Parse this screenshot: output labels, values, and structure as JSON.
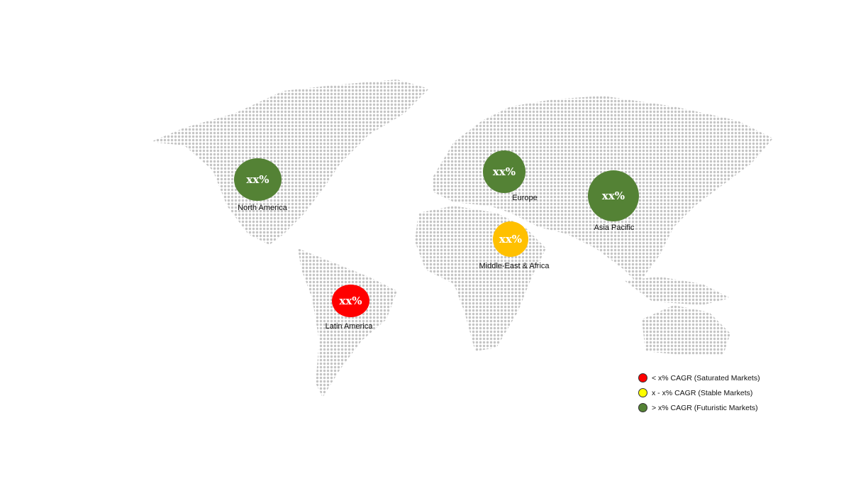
{
  "regions": [
    {
      "name": "North America",
      "value": "xx%",
      "color": "#548235",
      "category": "futuristic"
    },
    {
      "name": "Europe",
      "value": "xx%",
      "color": "#548235",
      "category": "futuristic"
    },
    {
      "name": "Asia Pacific",
      "value": "xx%",
      "color": "#548235",
      "category": "futuristic"
    },
    {
      "name": "Middle-East & Africa",
      "value": "xx%",
      "color": "#FFC000",
      "category": "stable"
    },
    {
      "name": "Latin America",
      "value": "xx%",
      "color": "#FF0000",
      "category": "saturated"
    }
  ],
  "legend": [
    {
      "label": "< x% CAGR (Saturated Markets)",
      "color": "#FF0000"
    },
    {
      "label": "x - x% CAGR (Stable Markets)",
      "color": "#FFFF00"
    },
    {
      "label": "> x% CAGR (Futuristic Markets)",
      "color": "#548235"
    }
  ],
  "map_dot_color": "#c4c4c4"
}
